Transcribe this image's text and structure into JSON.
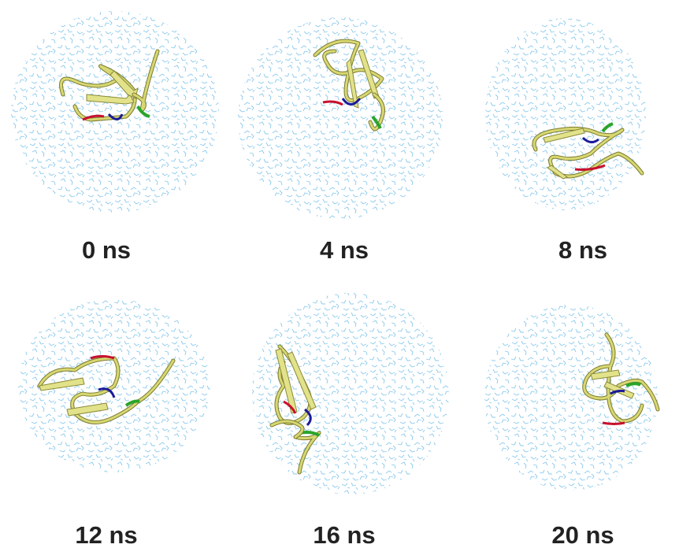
{
  "panels": [
    {
      "label": "0 ns"
    },
    {
      "label": "4 ns"
    },
    {
      "label": "8 ns"
    },
    {
      "label": "12 ns"
    },
    {
      "label": "16 ns"
    },
    {
      "label": "20 ns"
    }
  ]
}
